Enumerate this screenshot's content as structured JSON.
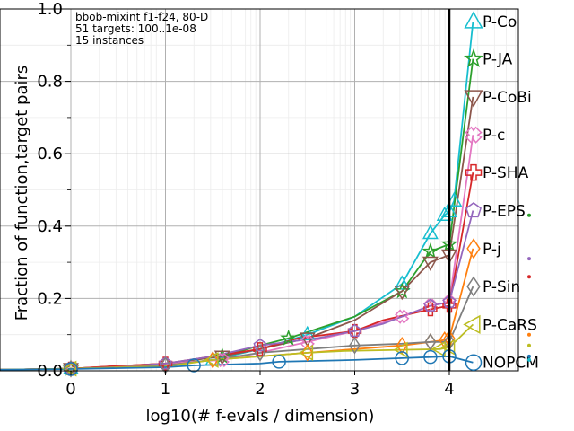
{
  "chart_data": {
    "type": "line",
    "title": "",
    "xlabel": "log10(# f-evals / dimension)",
    "ylabel": "Fraction of function,target pairs",
    "xlim": [
      0,
      4.75
    ],
    "ylim": [
      0,
      1.0
    ],
    "xticks": [
      "0",
      "1",
      "2",
      "3",
      "4"
    ],
    "yticks": [
      "0.0",
      "0.2",
      "0.4",
      "0.6",
      "0.8",
      "1.0"
    ],
    "grid": true,
    "budget_line_x": 4,
    "annotations": [
      "bbob-mixint f1-f24, 80-D",
      "51 targets: 100..1e-08",
      "15 instances"
    ],
    "series": [
      {
        "name": "P-Co",
        "color": "#17becf",
        "marker": "triangle-up",
        "label_y": 0.965,
        "x": [
          -0.8,
          0,
          1.0,
          1.5,
          2.0,
          2.5,
          3.0,
          3.5,
          3.8,
          3.95,
          4.0,
          4.05,
          4.25
        ],
        "y": [
          0.003,
          0.006,
          0.015,
          0.03,
          0.06,
          0.1,
          0.15,
          0.24,
          0.38,
          0.43,
          0.44,
          0.47,
          0.965
        ]
      },
      {
        "name": "P-JA",
        "color": "#2ca02c",
        "marker": "star",
        "label_y": 0.862,
        "x": [
          -0.8,
          0,
          1.0,
          1.6,
          2.0,
          2.3,
          3.0,
          3.5,
          3.8,
          4.0,
          4.25
        ],
        "y": [
          0.003,
          0.006,
          0.02,
          0.04,
          0.07,
          0.09,
          0.15,
          0.22,
          0.33,
          0.35,
          0.862
        ]
      },
      {
        "name": "P-CoBi",
        "color": "#8c564b",
        "marker": "triangle-down",
        "label_y": 0.757,
        "x": [
          -0.8,
          0,
          1.0,
          1.6,
          2.0,
          2.5,
          3.0,
          3.5,
          3.8,
          4.0,
          4.25
        ],
        "y": [
          0.003,
          0.006,
          0.02,
          0.04,
          0.06,
          0.09,
          0.14,
          0.22,
          0.3,
          0.32,
          0.757
        ]
      },
      {
        "name": "P-c",
        "color": "#e377c2",
        "marker": "x-thick",
        "label_y": 0.652,
        "x": [
          -0.8,
          0,
          1.0,
          1.6,
          2.0,
          2.5,
          3.0,
          3.5,
          3.8,
          4.0,
          4.25
        ],
        "y": [
          0.003,
          0.006,
          0.02,
          0.03,
          0.05,
          0.08,
          0.11,
          0.15,
          0.18,
          0.19,
          0.652
        ]
      },
      {
        "name": "P-SHA",
        "color": "#d62728",
        "marker": "plus-thick",
        "label_y": 0.548,
        "x": [
          -0.8,
          0,
          0.25,
          1.0,
          1.5,
          2.0,
          2.4,
          3.0,
          3.3,
          3.8,
          4.0,
          4.25
        ],
        "y": [
          0.003,
          0.006,
          0.01,
          0.02,
          0.04,
          0.06,
          0.09,
          0.11,
          0.14,
          0.17,
          0.18,
          0.548
        ]
      },
      {
        "name": "P-EPS",
        "color": "#9467bd",
        "marker": "pentagon",
        "label_y": 0.443,
        "x": [
          -0.8,
          0,
          0.35,
          1.0,
          1.5,
          2.0,
          2.6,
          3.0,
          3.3,
          3.8,
          4.0,
          4.25
        ],
        "y": [
          0.003,
          0.006,
          0.008,
          0.02,
          0.04,
          0.07,
          0.09,
          0.11,
          0.13,
          0.18,
          0.19,
          0.443
        ]
      },
      {
        "name": "P-j",
        "color": "#ff7f0e",
        "marker": "diamond",
        "label_y": 0.338,
        "x": [
          -0.8,
          0,
          1.0,
          1.5,
          2.0,
          2.5,
          3.0,
          3.5,
          3.8,
          3.95,
          4.0,
          4.25
        ],
        "y": [
          0.003,
          0.006,
          0.015,
          0.03,
          0.04,
          0.05,
          0.06,
          0.07,
          0.08,
          0.085,
          0.09,
          0.338
        ]
      },
      {
        "name": "P-Sin",
        "color": "#7f7f7f",
        "marker": "diamond",
        "label_y": 0.233,
        "x": [
          -0.8,
          0,
          0.8,
          1.0,
          1.5,
          2.0,
          2.5,
          3.0,
          3.5,
          3.8,
          4.0,
          4.25
        ],
        "y": [
          0.003,
          0.006,
          0.012,
          0.015,
          0.03,
          0.05,
          0.06,
          0.07,
          0.075,
          0.08,
          0.08,
          0.233
        ]
      },
      {
        "name": "P-CaRS",
        "color": "#bcbd22",
        "marker": "triangle-left",
        "label_y": 0.128,
        "x": [
          -0.8,
          0,
          1.0,
          1.5,
          2.0,
          2.5,
          2.9,
          3.5,
          3.9,
          4.0,
          4.25
        ],
        "y": [
          0.003,
          0.006,
          0.012,
          0.03,
          0.04,
          0.05,
          0.055,
          0.058,
          0.06,
          0.065,
          0.128
        ]
      },
      {
        "name": "NOPCM",
        "color": "#1f77b4",
        "marker": "circle",
        "label_y": 0.023,
        "x": [
          -0.8,
          0,
          1.0,
          1.3,
          2.0,
          2.2,
          3.0,
          3.5,
          3.8,
          4.0,
          4.25
        ],
        "y": [
          0.003,
          0.005,
          0.01,
          0.015,
          0.02,
          0.025,
          0.03,
          0.035,
          0.038,
          0.04,
          0.023
        ]
      }
    ],
    "right_dots": [
      {
        "color": "#2ca02c",
        "y": 0.43
      },
      {
        "color": "#9467bd",
        "y": 0.31
      },
      {
        "color": "#d62728",
        "y": 0.26
      },
      {
        "color": "#ff7f0e",
        "y": 0.1
      },
      {
        "color": "#bcbd22",
        "y": 0.07
      },
      {
        "color": "#17becf",
        "y": 0.03
      },
      {
        "color": "#1f77b4",
        "y": 0.04
      }
    ]
  }
}
